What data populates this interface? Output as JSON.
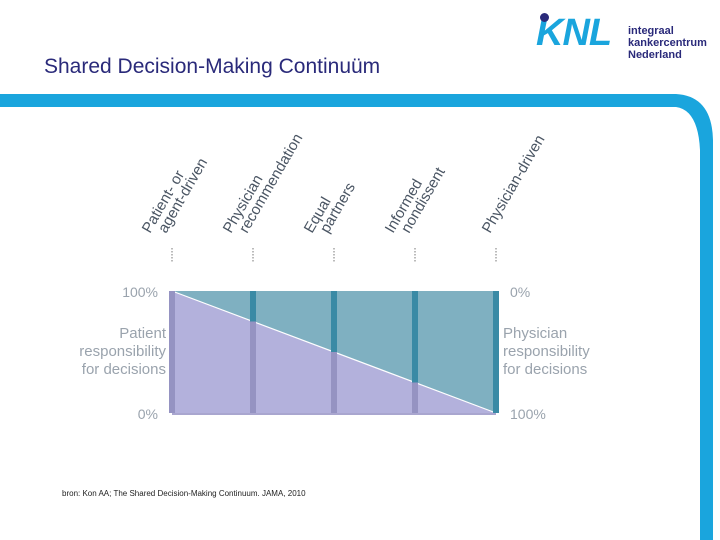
{
  "title": "Shared Decision-Making Continuüm",
  "logo": {
    "mark": "KNL",
    "lines": [
      "integraal",
      "kankercentrum",
      "Nederland"
    ]
  },
  "diagram": {
    "stages": [
      "Patient- or agent-driven",
      "Physician recommendation",
      "Equal partners",
      "Informed nondissent",
      "Physician-driven"
    ],
    "stage_lines": [
      [
        "Patient- or",
        "agent-driven"
      ],
      [
        "Physician",
        "recommendation"
      ],
      [
        "Equal",
        "partners"
      ],
      [
        "Informed",
        "nondissent"
      ],
      [
        "Physician-driven"
      ]
    ],
    "patient_share_at_stage": [
      1.0,
      0.75,
      0.5,
      0.25,
      0.0
    ],
    "left_axis": {
      "top": "100%",
      "bottom": "0%",
      "label": [
        "Patient",
        "responsibility",
        "for decisions"
      ]
    },
    "right_axis": {
      "top": "0%",
      "bottom": "100%",
      "label": [
        "Physician",
        "responsibility",
        "for decisions"
      ]
    }
  },
  "colors": {
    "physician_area": "#7fb0c1",
    "patient_area": "#b3b1dc",
    "physician_bar": "#3a8aa5",
    "patient_bar": "#9593c2",
    "slide_accent": "#1aa5dd",
    "title": "#2a2a7a"
  },
  "source": "bron: Kon AA; The Shared Decision-Making Continuum. JAMA, 2010"
}
